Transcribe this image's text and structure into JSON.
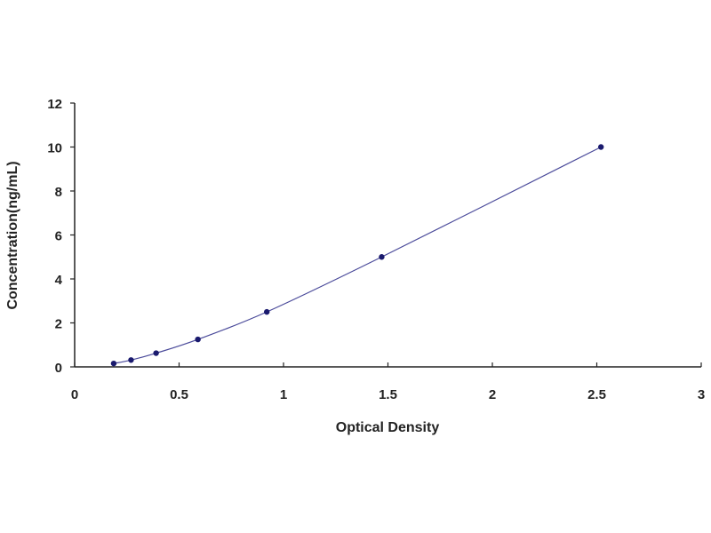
{
  "chart_data": {
    "type": "scatter",
    "title": "",
    "xlabel": "Optical Density",
    "ylabel": "Concentration(ng/mL)",
    "xlim": [
      0,
      3
    ],
    "ylim": [
      0,
      12
    ],
    "xticks": [
      "0",
      "0.5",
      "1",
      "1.5",
      "2",
      "2.5",
      "3"
    ],
    "yticks": [
      "0",
      "2",
      "4",
      "6",
      "8",
      "10",
      "12"
    ],
    "grid": false,
    "legend": "none",
    "series": [
      {
        "x": [
          0.187,
          0.27,
          0.39,
          0.59,
          0.92,
          1.47,
          2.52
        ],
        "y": [
          0.156,
          0.312,
          0.625,
          1.25,
          2.5,
          5,
          10
        ],
        "marker_color": "#1a1a6e",
        "line_color": "#4a4a9a",
        "fit_curve": true
      }
    ]
  }
}
